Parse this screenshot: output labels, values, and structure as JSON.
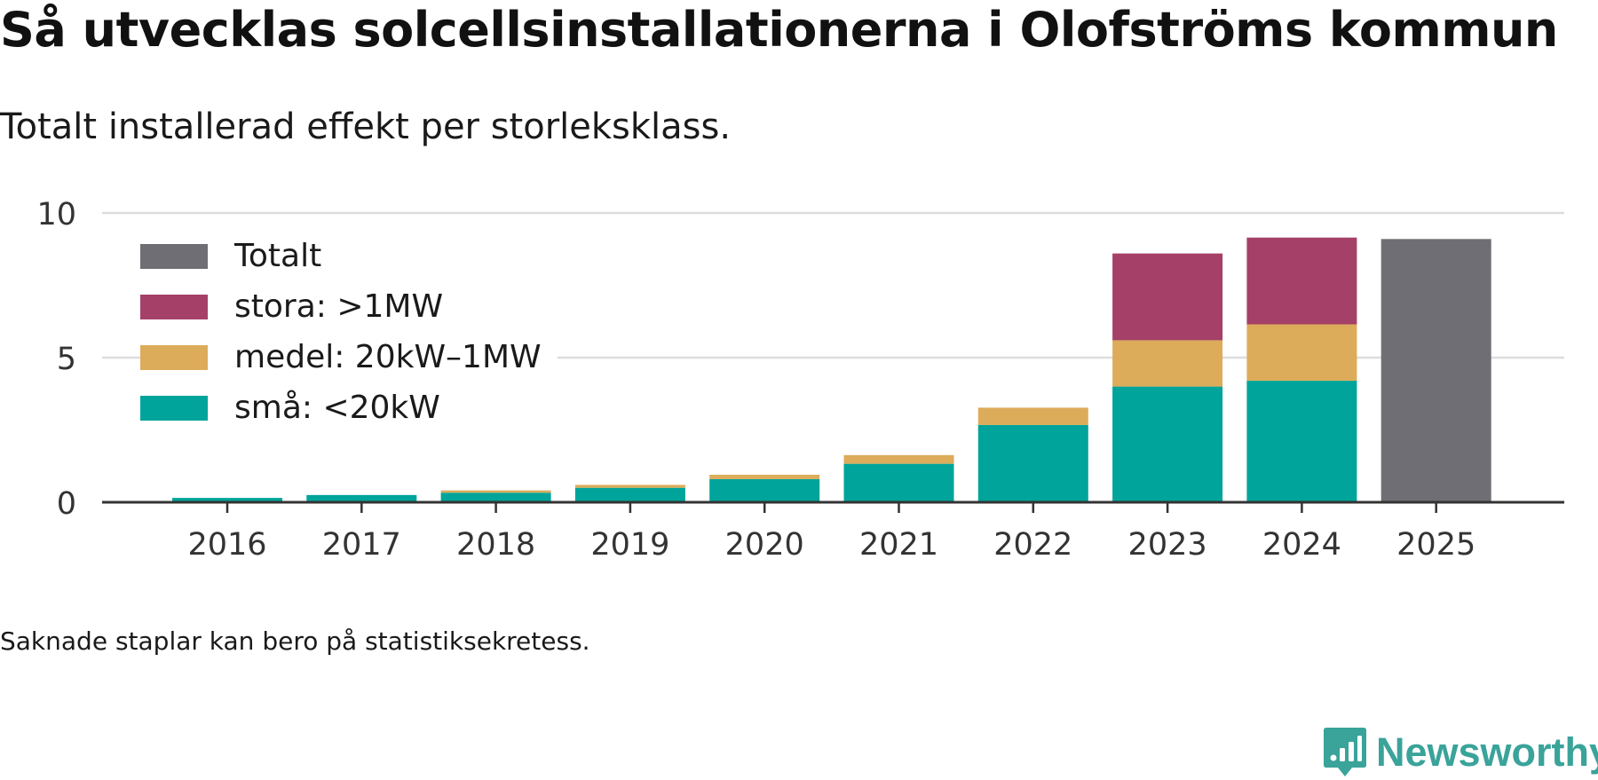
{
  "title": "Så utvecklas solcellsinstallationerna i Olofströms kommun",
  "subtitle": "Totalt installerad effekt per storleksklass.",
  "footnote": "Saknade staplar kan bero på statistiksekretess.",
  "brand": "Newsworthy",
  "colors": {
    "total": "#6f6e74",
    "stora": "#a54068",
    "medel": "#dcac5b",
    "sma": "#00a49a",
    "grid": "#dddddd",
    "axis": "#333333",
    "brand": "#3aa39a"
  },
  "chart_data": {
    "type": "bar",
    "stacked": true,
    "title": "Så utvecklas solcellsinstallationerna i Olofströms kommun",
    "subtitle": "Totalt installerad effekt per storleksklass.",
    "xlabel": "",
    "ylabel": "",
    "ylim": [
      0,
      10
    ],
    "yticks": [
      "0",
      "5",
      "10"
    ],
    "grid": true,
    "legend_position": "top-left",
    "categories": [
      "2016",
      "2017",
      "2018",
      "2019",
      "2020",
      "2021",
      "2022",
      "2023",
      "2024",
      "2025"
    ],
    "series": [
      {
        "name": "små: <20kW",
        "key": "sma",
        "values": [
          0.15,
          0.25,
          0.33,
          0.5,
          0.8,
          1.33,
          2.67,
          4.0,
          4.2,
          null
        ]
      },
      {
        "name": "medel: 20kW–1MW",
        "key": "medel",
        "values": [
          0,
          0,
          0.08,
          0.1,
          0.15,
          0.3,
          0.6,
          1.6,
          1.95,
          null
        ]
      },
      {
        "name": "stora: >1MW",
        "key": "stora",
        "values": [
          0,
          0,
          0,
          0,
          0,
          0,
          0,
          3.0,
          3.0,
          null
        ]
      },
      {
        "name": "Totalt",
        "key": "total",
        "values": [
          null,
          null,
          null,
          null,
          null,
          null,
          null,
          null,
          null,
          9.1
        ]
      }
    ]
  }
}
